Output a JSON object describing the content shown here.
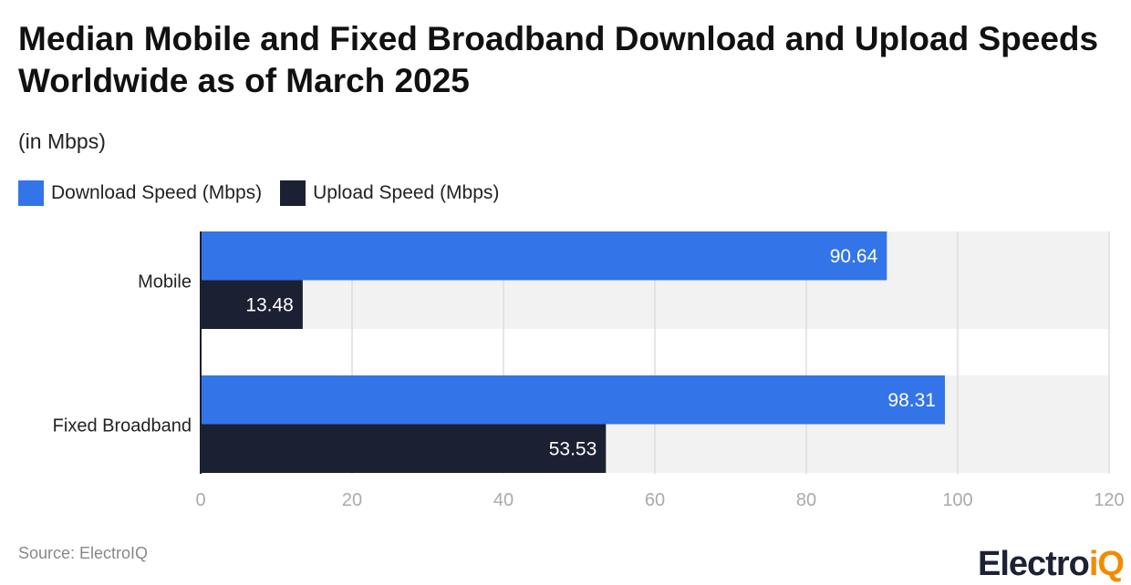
{
  "title": "Median Mobile and Fixed Broadband Download and Upload Speeds Worldwide as of March 2025",
  "subtitle": "(in Mbps)",
  "source": "Source: ElectroIQ",
  "logo": {
    "main": "Electro",
    "accent": "iQ"
  },
  "colors": {
    "download": "#3375E8",
    "upload": "#1C2033",
    "band": "#F2F2F2",
    "grid": "#DDDDDD"
  },
  "chart_data": {
    "type": "bar",
    "orientation": "horizontal",
    "categories": [
      "Mobile",
      "Fixed Broadband"
    ],
    "series": [
      {
        "name": "Download Speed (Mbps)",
        "values": [
          90.64,
          98.31
        ]
      },
      {
        "name": "Upload Speed (Mbps)",
        "values": [
          13.48,
          53.53
        ]
      }
    ],
    "xlim": [
      0,
      120
    ],
    "xticks": [
      0,
      20,
      40,
      60,
      80,
      100,
      120
    ],
    "grid": true,
    "legend": "top-left",
    "data_labels": [
      "90.64",
      "13.48",
      "98.31",
      "53.53"
    ]
  }
}
